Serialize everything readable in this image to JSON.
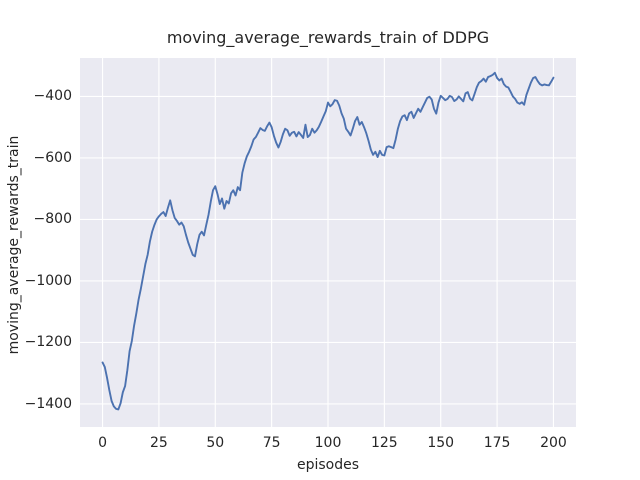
{
  "figure": {
    "background_color": "#ffffff",
    "plot_background_color": "#eaeaf2",
    "grid_color": "#ffffff",
    "line_color": "#4c72b0",
    "text_color": "#262626"
  },
  "chart_data": {
    "type": "line",
    "title": "moving_average_rewards_train of DDPG",
    "xlabel": "episodes",
    "ylabel": "moving_average_rewards_train",
    "legend": "none",
    "grid": true,
    "xlim": [
      -10,
      210
    ],
    "ylim": [
      -1475,
      -275
    ],
    "xticks": [
      0,
      25,
      50,
      75,
      100,
      125,
      150,
      175,
      200
    ],
    "yticks": [
      -400,
      -600,
      -800,
      -1000,
      -1200,
      -1400
    ],
    "series": [
      {
        "name": "moving_average_rewards_train",
        "x_start": 0,
        "x_step": 1,
        "y": [
          -1265,
          -1280,
          -1315,
          -1355,
          -1390,
          -1408,
          -1416,
          -1418,
          -1398,
          -1362,
          -1342,
          -1290,
          -1228,
          -1195,
          -1145,
          -1105,
          -1060,
          -1025,
          -985,
          -945,
          -915,
          -872,
          -840,
          -818,
          -800,
          -790,
          -782,
          -776,
          -789,
          -762,
          -738,
          -770,
          -795,
          -805,
          -817,
          -810,
          -822,
          -850,
          -875,
          -895,
          -915,
          -920,
          -880,
          -850,
          -840,
          -852,
          -818,
          -785,
          -742,
          -705,
          -692,
          -718,
          -750,
          -732,
          -765,
          -740,
          -748,
          -715,
          -705,
          -722,
          -695,
          -705,
          -648,
          -618,
          -595,
          -580,
          -562,
          -540,
          -532,
          -518,
          -503,
          -509,
          -512,
          -497,
          -485,
          -500,
          -528,
          -550,
          -566,
          -548,
          -523,
          -505,
          -510,
          -528,
          -518,
          -515,
          -530,
          -516,
          -525,
          -535,
          -492,
          -532,
          -525,
          -505,
          -518,
          -510,
          -498,
          -482,
          -465,
          -448,
          -420,
          -432,
          -425,
          -412,
          -414,
          -430,
          -455,
          -472,
          -505,
          -515,
          -527,
          -505,
          -480,
          -467,
          -492,
          -483,
          -500,
          -520,
          -545,
          -573,
          -590,
          -580,
          -597,
          -577,
          -590,
          -592,
          -565,
          -562,
          -565,
          -568,
          -540,
          -505,
          -480,
          -465,
          -461,
          -477,
          -455,
          -450,
          -470,
          -455,
          -440,
          -450,
          -435,
          -420,
          -405,
          -401,
          -410,
          -440,
          -456,
          -420,
          -398,
          -405,
          -412,
          -408,
          -398,
          -402,
          -415,
          -410,
          -400,
          -408,
          -416,
          -390,
          -386,
          -407,
          -413,
          -392,
          -370,
          -355,
          -350,
          -342,
          -352,
          -337,
          -334,
          -330,
          -323,
          -340,
          -348,
          -342,
          -360,
          -368,
          -371,
          -385,
          -400,
          -408,
          -420,
          -424,
          -419,
          -427,
          -395,
          -375,
          -355,
          -340,
          -337,
          -350,
          -360,
          -364,
          -361,
          -363,
          -364,
          -352,
          -339
        ]
      }
    ]
  }
}
